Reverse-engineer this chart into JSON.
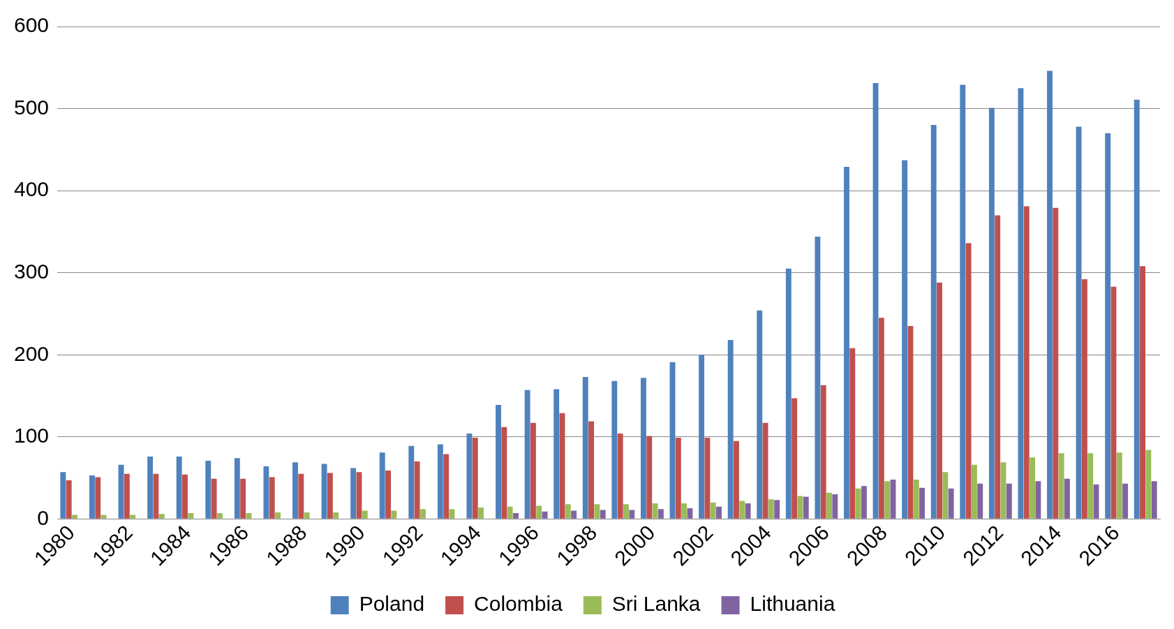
{
  "chart_data": {
    "type": "bar",
    "categories": [
      "1980",
      null,
      "1982",
      null,
      "1984",
      null,
      "1986",
      null,
      "1988",
      null,
      "1990",
      null,
      "1992",
      null,
      "1994",
      null,
      "1996",
      null,
      "1998",
      null,
      "2000",
      null,
      "2002",
      null,
      "2004",
      null,
      "2006",
      null,
      "2008",
      null,
      "2010",
      null,
      "2012",
      null,
      "2014",
      null,
      "2016",
      null
    ],
    "series": [
      {
        "name": "Poland",
        "color": "#4f81bd",
        "values": [
          57,
          53,
          66,
          76,
          76,
          71,
          74,
          64,
          69,
          67,
          62,
          81,
          89,
          91,
          104,
          139,
          157,
          158,
          173,
          168,
          172,
          191,
          200,
          218,
          254,
          305,
          344,
          429,
          531,
          437,
          480,
          529,
          501,
          525,
          546,
          478,
          470,
          511
        ]
      },
      {
        "name": "Colombia",
        "color": "#c0504d",
        "values": [
          47,
          51,
          55,
          55,
          54,
          49,
          49,
          51,
          55,
          56,
          57,
          59,
          70,
          79,
          99,
          112,
          117,
          129,
          119,
          104,
          101,
          99,
          99,
          95,
          117,
          147,
          163,
          208,
          245,
          235,
          288,
          336,
          370,
          381,
          379,
          292,
          283,
          308
        ]
      },
      {
        "name": "Sri Lanka",
        "color": "#9bbb59",
        "values": [
          5,
          5,
          5,
          6,
          7,
          7,
          7,
          8,
          8,
          8,
          10,
          10,
          12,
          12,
          14,
          15,
          16,
          18,
          18,
          18,
          19,
          19,
          20,
          22,
          24,
          28,
          32,
          37,
          46,
          48,
          57,
          66,
          69,
          75,
          80,
          80,
          81,
          84
        ]
      },
      {
        "name": "Lithuania",
        "color": "#8064a2",
        "values": [
          null,
          null,
          null,
          null,
          null,
          null,
          null,
          null,
          null,
          null,
          null,
          null,
          null,
          null,
          null,
          7,
          9,
          10,
          11,
          11,
          12,
          13,
          15,
          19,
          23,
          27,
          30,
          40,
          48,
          38,
          37,
          43,
          43,
          46,
          49,
          42,
          43,
          46
        ]
      }
    ],
    "ylim": [
      0,
      600
    ],
    "yticks": [
      0,
      100,
      200,
      300,
      400,
      500,
      600
    ],
    "grid": "y",
    "legend": "bottom"
  }
}
